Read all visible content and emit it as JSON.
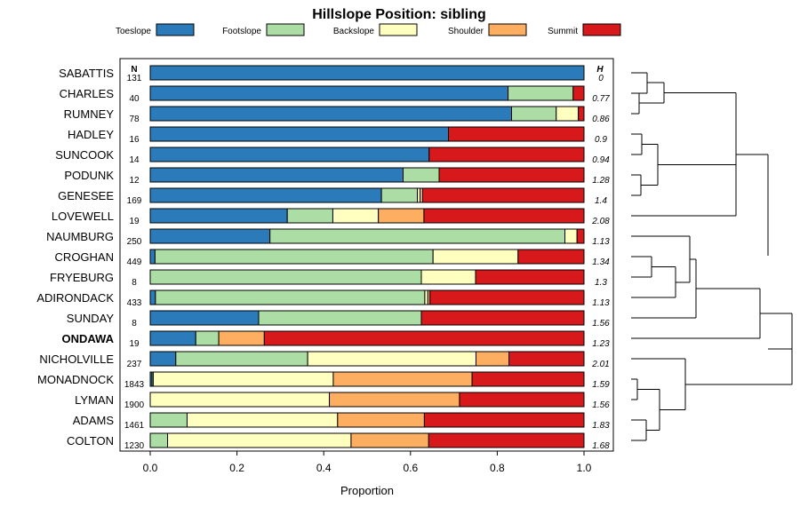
{
  "chart_data": {
    "type": "bar",
    "stacked": true,
    "orientation": "horizontal",
    "title": "Hillslope Position: sibling",
    "xlabel": "Proportion",
    "ylabel": "",
    "xlim": [
      0,
      1
    ],
    "x_ticks": [
      "0.0",
      "0.2",
      "0.4",
      "0.6",
      "0.8",
      "1.0"
    ],
    "x_tick_values": [
      0,
      0.2,
      0.4,
      0.6,
      0.8,
      1.0
    ],
    "legend_position": "top",
    "n_header": "N",
    "h_header": "H",
    "series": [
      {
        "name": "Toeslope",
        "color": "#2b7bba"
      },
      {
        "name": "Footslope",
        "color": "#abdda4"
      },
      {
        "name": "Backslope",
        "color": "#ffffbf"
      },
      {
        "name": "Shoulder",
        "color": "#fdae61"
      },
      {
        "name": "Summit",
        "color": "#d7191c"
      }
    ],
    "rows": [
      {
        "label": "SABATTIS",
        "n": "131",
        "h": "0",
        "bold": false,
        "values": [
          1.0,
          0,
          0,
          0,
          0
        ]
      },
      {
        "label": "CHARLES",
        "n": "40",
        "h": "0.77",
        "bold": false,
        "values": [
          0.825,
          0.15,
          0,
          0,
          0.025
        ]
      },
      {
        "label": "RUMNEY",
        "n": "78",
        "h": "0.86",
        "bold": false,
        "values": [
          0.833,
          0.103,
          0.051,
          0,
          0.013
        ]
      },
      {
        "label": "HADLEY",
        "n": "16",
        "h": "0.9",
        "bold": false,
        "values": [
          0.6875,
          0,
          0,
          0,
          0.3125
        ]
      },
      {
        "label": "SUNCOOK",
        "n": "14",
        "h": "0.94",
        "bold": false,
        "values": [
          0.643,
          0,
          0,
          0,
          0.357
        ]
      },
      {
        "label": "PODUNK",
        "n": "12",
        "h": "1.28",
        "bold": false,
        "values": [
          0.583,
          0.083,
          0,
          0,
          0.334
        ]
      },
      {
        "label": "GENESEE",
        "n": "169",
        "h": "1.4",
        "bold": false,
        "values": [
          0.533,
          0.083,
          0.006,
          0.006,
          0.372
        ]
      },
      {
        "label": "LOVEWELL",
        "n": "19",
        "h": "2.08",
        "bold": false,
        "values": [
          0.316,
          0.105,
          0.105,
          0.105,
          0.369
        ]
      },
      {
        "label": "NAUMBURG",
        "n": "250",
        "h": "1.13",
        "bold": false,
        "values": [
          0.276,
          0.68,
          0.028,
          0,
          0.016
        ]
      },
      {
        "label": "CROGHAN",
        "n": "449",
        "h": "1.34",
        "bold": false,
        "values": [
          0.011,
          0.641,
          0.196,
          0,
          0.152
        ]
      },
      {
        "label": "FRYEBURG",
        "n": "8",
        "h": "1.3",
        "bold": false,
        "values": [
          0,
          0.625,
          0.125,
          0,
          0.25
        ]
      },
      {
        "label": "ADIRONDACK",
        "n": "433",
        "h": "1.13",
        "bold": false,
        "values": [
          0.012,
          0.621,
          0.007,
          0.005,
          0.355
        ]
      },
      {
        "label": "SUNDAY",
        "n": "8",
        "h": "1.56",
        "bold": false,
        "values": [
          0.25,
          0.375,
          0,
          0,
          0.375
        ]
      },
      {
        "label": "ONDAWA",
        "n": "19",
        "h": "1.23",
        "bold": true,
        "values": [
          0.105,
          0.053,
          0,
          0.105,
          0.737
        ]
      },
      {
        "label": "NICHOLVILLE",
        "n": "237",
        "h": "2.01",
        "bold": false,
        "values": [
          0.059,
          0.304,
          0.388,
          0.076,
          0.173
        ]
      },
      {
        "label": "MONADNOCK",
        "n": "1843",
        "h": "1.59",
        "bold": false,
        "values": [
          0.004,
          0.003,
          0.415,
          0.32,
          0.258
        ]
      },
      {
        "label": "LYMAN",
        "n": "1900",
        "h": "1.56",
        "bold": false,
        "values": [
          0,
          0,
          0.413,
          0.3,
          0.287
        ]
      },
      {
        "label": "ADAMS",
        "n": "1461",
        "h": "1.83",
        "bold": false,
        "values": [
          0,
          0.085,
          0.347,
          0.2,
          0.368
        ]
      },
      {
        "label": "COLTON",
        "n": "1230",
        "h": "1.68",
        "bold": false,
        "values": [
          0,
          0.04,
          0.423,
          0.179,
          0.358
        ]
      }
    ]
  }
}
